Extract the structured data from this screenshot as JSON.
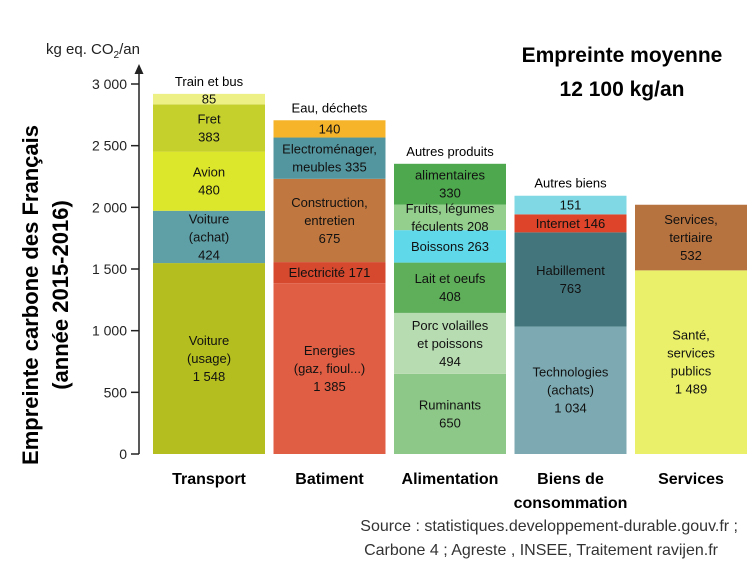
{
  "chart_data": {
    "type": "bar",
    "stacked": true,
    "ylabel": [
      "Empreinte carbone des Français",
      "(année 2015-2016)"
    ],
    "unit_label": {
      "prefix": "kg eq. CO",
      "sub": "2",
      "suffix": "/an"
    },
    "total_label": [
      "Empreinte moyenne",
      "12 100 kg/an"
    ],
    "ylim": [
      0,
      3000
    ],
    "ytick_values": [
      0,
      500,
      1000,
      1500,
      2000,
      2500,
      3000
    ],
    "ytick_labels": [
      "0",
      "500",
      "1 000",
      "1 500",
      "2 000",
      "2 500",
      "3 000"
    ],
    "grid": false,
    "source": [
      "Source : statistiques.developpement-durable.gouv.fr ;",
      "Carbone 4 ; Agreste , INSEE, Traitement ravijen.fr"
    ],
    "categories": [
      {
        "label": [
          "Transport"
        ],
        "segments": [
          {
            "value": 1548,
            "color": "#b4bf1f",
            "text": [
              "Voiture",
              "(usage)",
              "1 548"
            ]
          },
          {
            "value": 424,
            "color": "#5f9fa6",
            "text": [
              "Voiture",
              "(achat)",
              "424"
            ]
          },
          {
            "value": 480,
            "color": "#dce62b",
            "text": [
              "Avion",
              "480"
            ]
          },
          {
            "value": 383,
            "color": "#c5d02d",
            "text": [
              "Fret",
              "383"
            ]
          },
          {
            "value": 85,
            "color": "#edf185",
            "text": [
              "85"
            ],
            "header": [
              "Train et bus"
            ]
          }
        ]
      },
      {
        "label": [
          "Batiment"
        ],
        "segments": [
          {
            "value": 1385,
            "color": "#e05e44",
            "text": [
              "Energies",
              "(gaz, fioul...)",
              "1 385"
            ]
          },
          {
            "value": 171,
            "color": "#d6492e",
            "text": [
              "Electricité 171"
            ]
          },
          {
            "value": 675,
            "color": "#c07840",
            "text": [
              "Construction,",
              "entretien",
              "675"
            ]
          },
          {
            "value": 335,
            "color": "#54969f",
            "text": [
              "Electroménager,",
              "meubles 335"
            ]
          },
          {
            "value": 140,
            "color": "#f6b42b",
            "text": [
              "140"
            ],
            "header": [
              "Eau, déchets"
            ]
          }
        ]
      },
      {
        "label": [
          "Alimentation"
        ],
        "segments": [
          {
            "value": 650,
            "color": "#8ec889",
            "text": [
              "Ruminants",
              "650"
            ]
          },
          {
            "value": 494,
            "color": "#b8dcb2",
            "text": [
              "Porc volailles",
              "et poissons",
              "494"
            ]
          },
          {
            "value": 408,
            "color": "#5fae5a",
            "text": [
              "Lait et oeufs",
              "408"
            ]
          },
          {
            "value": 263,
            "color": "#5fd8ea",
            "text": [
              "Boissons 263"
            ]
          },
          {
            "value": 208,
            "color": "#94cf8e",
            "text": [
              "Fruits, légumes",
              "féculents 208"
            ]
          },
          {
            "value": 330,
            "color": "#4ea84e",
            "text": [
              "alimentaires",
              "330"
            ],
            "header": [
              "Autres produits"
            ]
          }
        ]
      },
      {
        "label": [
          "Biens de",
          "consommation"
        ],
        "segments": [
          {
            "value": 1034,
            "color": "#7daab2",
            "text": [
              "Technologies",
              "(achats)",
              "1 034"
            ]
          },
          {
            "value": 763,
            "color": "#43757c",
            "text": [
              "Habillement",
              "763"
            ]
          },
          {
            "value": 146,
            "color": "#dd4429",
            "text": [
              "Internet 146"
            ]
          },
          {
            "value": 151,
            "color": "#7fd8e3",
            "text": [
              "151"
            ],
            "header": [
              "Autres biens"
            ]
          }
        ]
      },
      {
        "label": [
          "Services"
        ],
        "segments": [
          {
            "value": 1489,
            "color": "#eaf069",
            "text": [
              "Santé,",
              "services",
              "publics",
              "1 489"
            ]
          },
          {
            "value": 532,
            "color": "#b6723f",
            "text": [
              "Services,",
              "tertiaire",
              "532"
            ]
          }
        ]
      }
    ]
  }
}
